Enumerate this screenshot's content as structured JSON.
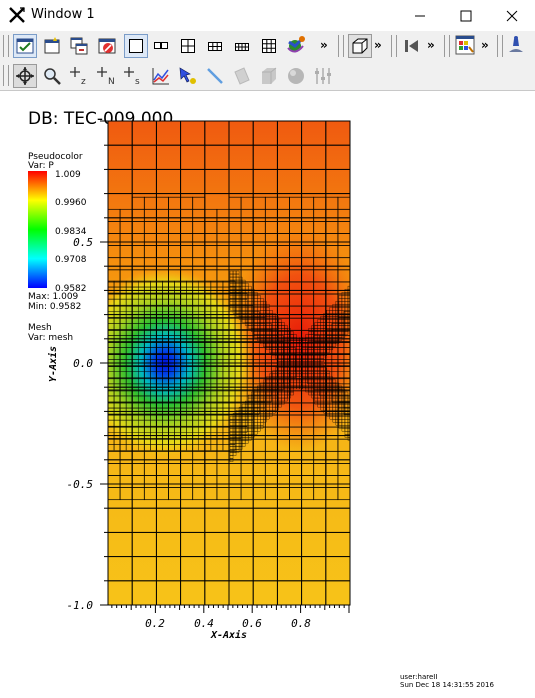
{
  "window": {
    "title": "Window 1"
  },
  "toolbar1": {
    "icons": [
      "active-window-icon",
      "new-window-icon",
      "copy-window-icon",
      "delete-window-icon",
      "layout-1x1-icon",
      "layout-1x2-icon",
      "layout-2x2-icon",
      "layout-2x3-icon",
      "layout-3x3-icon",
      "layout-4x4-icon",
      "spin-mode-icon",
      "extension-arrow-icon",
      "view-3d-box-icon",
      "extension-arrow-icon",
      "animation-back-icon",
      "extension-arrow-icon",
      "color-table-icon",
      "extension-arrow-icon",
      "lighting-lamp-icon"
    ]
  },
  "toolbar2": {
    "icons": [
      "navigate-icon",
      "zoom-icon",
      "lineout-z-icon",
      "lineout-n-icon",
      "lineout-s-icon",
      "curve-plot-icon",
      "pick-icon",
      "line-icon",
      "plane-icon",
      "box-icon",
      "sphere-icon",
      "slider-icon"
    ],
    "lineout_letters": [
      "z",
      "N",
      "s"
    ]
  },
  "plot": {
    "db_title": "DB: TEC-009.000",
    "legend1": {
      "title": "Pseudocolor",
      "var": "Var: P",
      "ticks": [
        "1.009",
        "0.9960",
        "0.9834",
        "0.9708",
        "0.9582"
      ],
      "max": "Max:  1.009",
      "min": "Min:  0.9582"
    },
    "legend2": {
      "title": "Mesh",
      "var": "Var: mesh"
    },
    "y_ticks": [
      "0.5",
      "0.0",
      "-0.5",
      "-1.0"
    ],
    "x_ticks": [
      "0.2",
      "0.4",
      "0.6",
      "0.8"
    ],
    "y_axis_label": "Y-Axis",
    "x_axis_label": "X-Axis",
    "user": "user:hareII",
    "date": "Sun Dec 18 14:31:55 2016"
  }
}
